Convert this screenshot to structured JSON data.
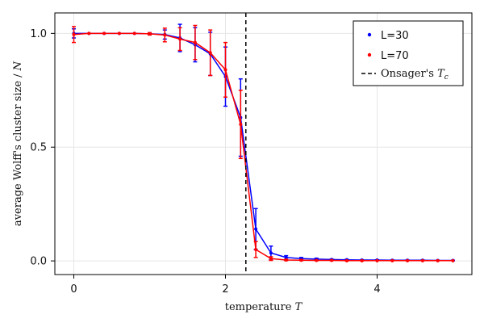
{
  "chart_data": {
    "type": "line",
    "xlabel": "temperature",
    "xlabel_var": "T",
    "ylabel": "average Wolff's cluster size / N",
    "xlim": [
      -0.25,
      5.25
    ],
    "ylim": [
      -0.06,
      1.09
    ],
    "x_ticks": [
      0,
      2,
      4
    ],
    "x_tick_labels": [
      "0",
      "2",
      "4"
    ],
    "y_ticks": [
      0.0,
      0.5,
      1.0
    ],
    "y_tick_labels": [
      "0.0",
      "0.5",
      "1.0"
    ],
    "grid": true,
    "legend_position": "top-right",
    "vline": {
      "x": 2.269,
      "name": "Onsager's",
      "name_var": "T",
      "name_sub": "c",
      "style": "dashed",
      "color": "#000000"
    },
    "series": [
      {
        "name": "L=30",
        "color": "#0000ff",
        "points": [
          {
            "x": 0.0,
            "y": 1.0,
            "err": 0.02
          },
          {
            "x": 0.2,
            "y": 1.0,
            "err": 0.0
          },
          {
            "x": 0.4,
            "y": 1.0,
            "err": 0.0
          },
          {
            "x": 0.6,
            "y": 1.0,
            "err": 0.0
          },
          {
            "x": 0.8,
            "y": 1.0,
            "err": 0.0
          },
          {
            "x": 1.0,
            "y": 0.998,
            "err": 0.005
          },
          {
            "x": 1.2,
            "y": 0.995,
            "err": 0.02
          },
          {
            "x": 1.4,
            "y": 0.98,
            "err": 0.06
          },
          {
            "x": 1.6,
            "y": 0.95,
            "err": 0.075
          },
          {
            "x": 1.8,
            "y": 0.91,
            "err": 0.095
          },
          {
            "x": 2.0,
            "y": 0.81,
            "err": 0.13
          },
          {
            "x": 2.2,
            "y": 0.63,
            "err": 0.17
          },
          {
            "x": 2.4,
            "y": 0.14,
            "err": 0.09
          },
          {
            "x": 2.6,
            "y": 0.035,
            "err": 0.03
          },
          {
            "x": 2.8,
            "y": 0.015,
            "err": 0.008
          },
          {
            "x": 3.0,
            "y": 0.01,
            "err": 0.005
          },
          {
            "x": 3.2,
            "y": 0.008,
            "err": 0.004
          },
          {
            "x": 3.4,
            "y": 0.006,
            "err": 0.002
          },
          {
            "x": 3.6,
            "y": 0.005,
            "err": 0.002
          },
          {
            "x": 3.8,
            "y": 0.004,
            "err": 0.001
          },
          {
            "x": 4.0,
            "y": 0.004,
            "err": 0.001
          },
          {
            "x": 4.2,
            "y": 0.003,
            "err": 0.001
          },
          {
            "x": 4.4,
            "y": 0.003,
            "err": 0.001
          },
          {
            "x": 4.6,
            "y": 0.003,
            "err": 0.001
          },
          {
            "x": 4.8,
            "y": 0.002,
            "err": 0.001
          },
          {
            "x": 5.0,
            "y": 0.002,
            "err": 0.001
          }
        ]
      },
      {
        "name": "L=70",
        "color": "#ff0000",
        "points": [
          {
            "x": 0.0,
            "y": 0.995,
            "err": 0.035
          },
          {
            "x": 0.2,
            "y": 1.0,
            "err": 0.0
          },
          {
            "x": 0.4,
            "y": 1.0,
            "err": 0.0
          },
          {
            "x": 0.6,
            "y": 1.0,
            "err": 0.0
          },
          {
            "x": 0.8,
            "y": 1.0,
            "err": 0.0
          },
          {
            "x": 1.0,
            "y": 0.998,
            "err": 0.005
          },
          {
            "x": 1.2,
            "y": 0.993,
            "err": 0.03
          },
          {
            "x": 1.4,
            "y": 0.975,
            "err": 0.05
          },
          {
            "x": 1.6,
            "y": 0.96,
            "err": 0.075
          },
          {
            "x": 1.8,
            "y": 0.915,
            "err": 0.1
          },
          {
            "x": 2.0,
            "y": 0.84,
            "err": 0.12
          },
          {
            "x": 2.2,
            "y": 0.6,
            "err": 0.15
          },
          {
            "x": 2.4,
            "y": 0.05,
            "err": 0.035
          },
          {
            "x": 2.6,
            "y": 0.01,
            "err": 0.008
          },
          {
            "x": 2.8,
            "y": 0.004,
            "err": 0.003
          },
          {
            "x": 3.0,
            "y": 0.003,
            "err": 0.002
          },
          {
            "x": 3.2,
            "y": 0.002,
            "err": 0.001
          },
          {
            "x": 3.4,
            "y": 0.002,
            "err": 0.001
          },
          {
            "x": 3.6,
            "y": 0.001,
            "err": 0.001
          },
          {
            "x": 3.8,
            "y": 0.001,
            "err": 0.001
          },
          {
            "x": 4.0,
            "y": 0.001,
            "err": 0.0
          },
          {
            "x": 4.2,
            "y": 0.001,
            "err": 0.0
          },
          {
            "x": 4.4,
            "y": 0.001,
            "err": 0.0
          },
          {
            "x": 4.6,
            "y": 0.001,
            "err": 0.0
          },
          {
            "x": 4.8,
            "y": 0.001,
            "err": 0.0
          },
          {
            "x": 5.0,
            "y": 0.001,
            "err": 0.0
          }
        ]
      }
    ]
  }
}
